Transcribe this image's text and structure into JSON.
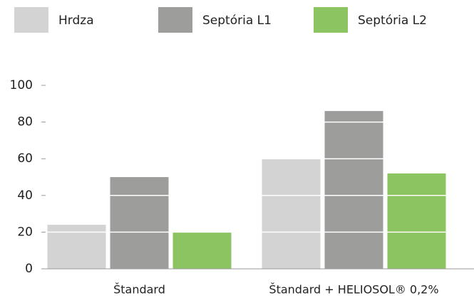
{
  "chart_data": {
    "type": "bar",
    "categories": [
      "Štandard",
      "Štandard + HELIOSOL® 0,2%"
    ],
    "series": [
      {
        "name": "Hrdza",
        "color": "#d3d3d3",
        "values": [
          24,
          60
        ]
      },
      {
        "name": "Septória L1",
        "color": "#9d9d9c",
        "values": [
          50,
          86
        ]
      },
      {
        "name": "Septória L2",
        "color": "#8cc462",
        "values": [
          20,
          52
        ]
      }
    ],
    "ylim": [
      0,
      100
    ],
    "yticks": [
      0,
      20,
      40,
      60,
      80,
      100
    ],
    "grid": true,
    "grid_color": "#ffffff",
    "legend": "top"
  }
}
